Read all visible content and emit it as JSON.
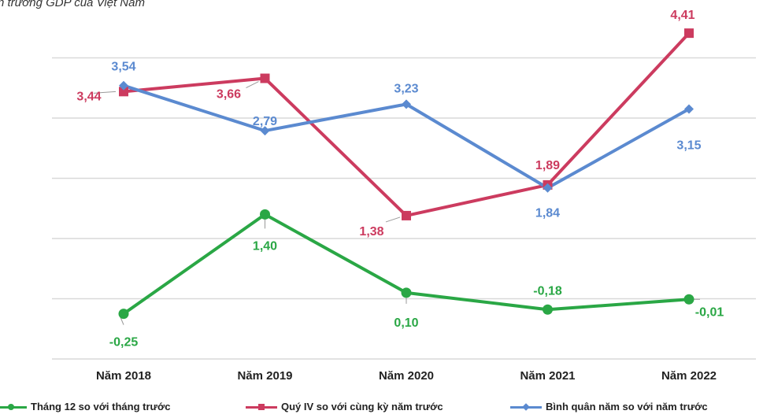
{
  "subtitle": "n trưởng GDP của Việt Nam",
  "colors": {
    "green": "#2aa745",
    "red": "#cc3b5f",
    "blue": "#5b8ad0",
    "grid": "#d9d9d9"
  },
  "chart_data": {
    "type": "line",
    "categories": [
      "Năm 2018",
      "Năm 2019",
      "Năm 2020",
      "Năm 2021",
      "Năm 2022"
    ],
    "ylim": [
      -1.0,
      5.0
    ],
    "grid": true,
    "legend_position": "bottom",
    "series": [
      {
        "name": "Tháng 12 so với tháng trước",
        "color": "#2aa745",
        "marker": "circle",
        "values": [
          -0.25,
          1.4,
          0.1,
          -0.18,
          -0.01
        ],
        "labels": [
          "-0,25",
          "1,40",
          "0,10",
          "-0,18",
          "-0,01"
        ]
      },
      {
        "name": "Quý IV so với cùng kỳ năm trước",
        "color": "#cc3b5f",
        "marker": "square",
        "values": [
          3.44,
          3.66,
          1.38,
          1.89,
          4.41
        ],
        "labels": [
          "3,44",
          "3,66",
          "1,38",
          "1,89",
          "4,41"
        ]
      },
      {
        "name": "Bình quân năm so với năm trước",
        "color": "#5b8ad0",
        "marker": "diamond",
        "values": [
          3.54,
          2.79,
          3.23,
          1.84,
          3.15
        ],
        "labels": [
          "3,54",
          "2,79",
          "3,23",
          "1,84",
          "3,15"
        ]
      }
    ]
  }
}
